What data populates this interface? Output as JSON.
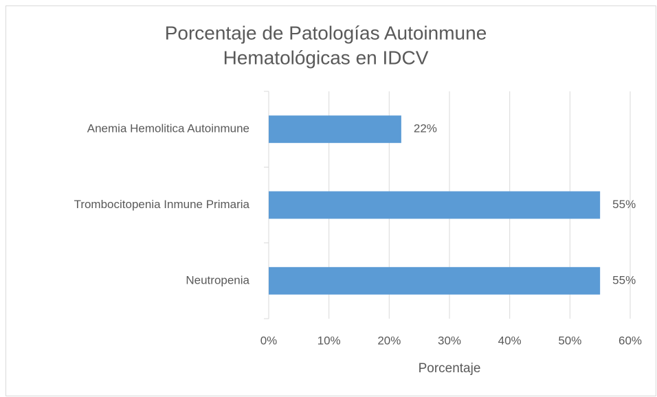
{
  "chart_data": {
    "type": "bar",
    "orientation": "horizontal",
    "title": [
      "Porcentaje de Patologías Autoinmune",
      "Hematológicas en IDCV"
    ],
    "categories": [
      "Anemia Hemolitica Autoinmune",
      "Trombocitopenia Inmune Primaria",
      "Neutropenia"
    ],
    "values": [
      22,
      55,
      55
    ],
    "value_labels": [
      "22%",
      "55%",
      "55%"
    ],
    "color": "#5b9bd5",
    "xlabel": "Porcentaje",
    "xlim": [
      0,
      60
    ],
    "xticks": [
      {
        "value": 0,
        "label": "0%"
      },
      {
        "value": 10,
        "label": "10%"
      },
      {
        "value": 20,
        "label": "20%"
      },
      {
        "value": 30,
        "label": "30%"
      },
      {
        "value": 40,
        "label": "40%"
      },
      {
        "value": 50,
        "label": "50%"
      },
      {
        "value": 60,
        "label": "60%"
      }
    ],
    "grid": true
  }
}
